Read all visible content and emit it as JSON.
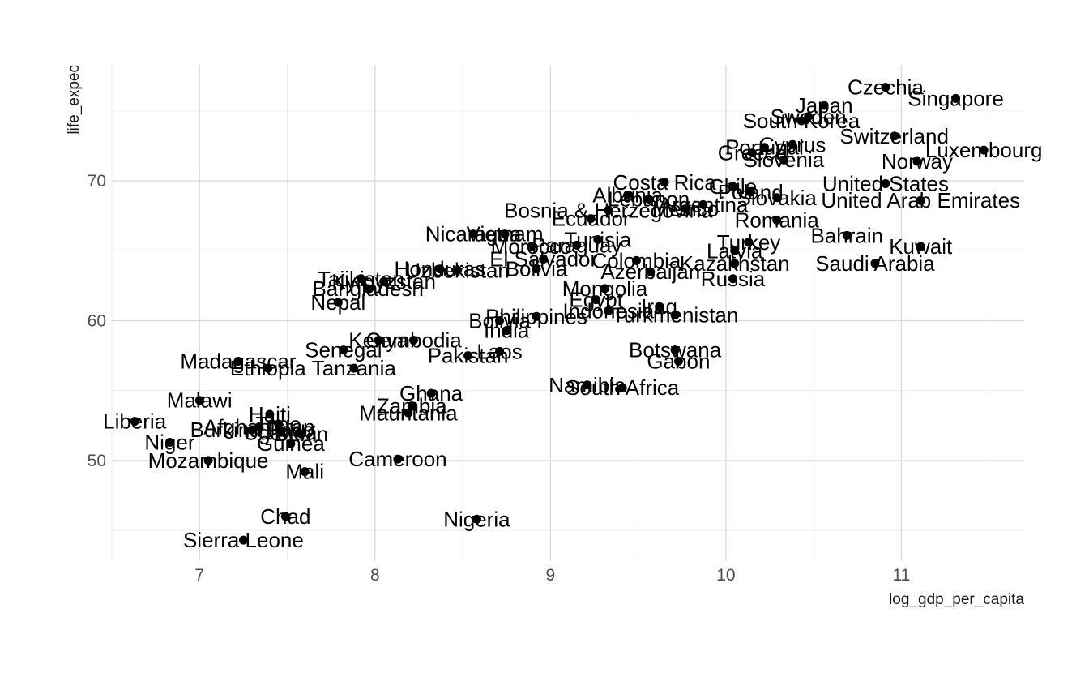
{
  "chart_data": {
    "type": "scatter",
    "xlabel": "log_gdp_per_capita",
    "ylabel": "life_expec",
    "xlim": [
      6.5,
      11.7
    ],
    "ylim": [
      42.8,
      78.3
    ],
    "x_ticks": [
      7,
      8,
      9,
      10,
      11
    ],
    "y_ticks": [
      50,
      60,
      70
    ],
    "grid": true,
    "points": [
      {
        "label": "Czechia",
        "x": 10.91,
        "y": 76.7
      },
      {
        "label": "Singapore",
        "x": 11.31,
        "y": 75.9
      },
      {
        "label": "Japan",
        "x": 10.56,
        "y": 75.4
      },
      {
        "label": "Sweden",
        "x": 10.47,
        "y": 74.6
      },
      {
        "label": "South Korea",
        "x": 10.43,
        "y": 74.3
      },
      {
        "label": "Switzerland",
        "x": 10.96,
        "y": 73.2
      },
      {
        "label": "Luxembourg",
        "x": 11.47,
        "y": 72.2
      },
      {
        "label": "Norway",
        "x": 11.09,
        "y": 71.4
      },
      {
        "label": "Greece",
        "x": 10.15,
        "y": 72.0
      },
      {
        "label": "Portugal",
        "x": 10.22,
        "y": 72.4
      },
      {
        "label": "Cyprus",
        "x": 10.38,
        "y": 72.6
      },
      {
        "label": "Slovenia",
        "x": 10.33,
        "y": 71.5
      },
      {
        "label": "United States",
        "x": 10.91,
        "y": 69.8
      },
      {
        "label": "United Arab Emirates",
        "x": 11.11,
        "y": 68.6
      },
      {
        "label": "Costa Rica",
        "x": 9.65,
        "y": 69.9
      },
      {
        "label": "Chile",
        "x": 10.04,
        "y": 69.6
      },
      {
        "label": "Poland",
        "x": 10.14,
        "y": 69.2
      },
      {
        "label": "Slovakia",
        "x": 10.29,
        "y": 68.8
      },
      {
        "label": "Albania",
        "x": 9.44,
        "y": 69.0
      },
      {
        "label": "Lebanon",
        "x": 9.56,
        "y": 68.7
      },
      {
        "label": "Bosnia & Herzegovina",
        "x": 9.33,
        "y": 67.9
      },
      {
        "label": "Mexico",
        "x": 9.77,
        "y": 68.0
      },
      {
        "label": "Argentina",
        "x": 9.87,
        "y": 68.3
      },
      {
        "label": "Ecuador",
        "x": 9.23,
        "y": 67.3
      },
      {
        "label": "Romania",
        "x": 10.29,
        "y": 67.2
      },
      {
        "label": "Nicaragua",
        "x": 8.56,
        "y": 66.2
      },
      {
        "label": "Vietnam",
        "x": 8.74,
        "y": 66.2
      },
      {
        "label": "Tunisia",
        "x": 9.27,
        "y": 65.8
      },
      {
        "label": "Turkey",
        "x": 10.13,
        "y": 65.6
      },
      {
        "label": "Bahrain",
        "x": 10.69,
        "y": 66.1
      },
      {
        "label": "Kuwait",
        "x": 11.11,
        "y": 65.3
      },
      {
        "label": "Morocco",
        "x": 8.89,
        "y": 65.3
      },
      {
        "label": "Paraguay",
        "x": 9.15,
        "y": 65.4
      },
      {
        "label": "Latvia",
        "x": 10.05,
        "y": 65.0
      },
      {
        "label": "El Salvador",
        "x": 8.96,
        "y": 64.4
      },
      {
        "label": "Colombia",
        "x": 9.49,
        "y": 64.3
      },
      {
        "label": "Kazakhstan",
        "x": 10.05,
        "y": 64.1
      },
      {
        "label": "Saudi Arabia",
        "x": 10.85,
        "y": 64.1
      },
      {
        "label": "Honduras",
        "x": 8.37,
        "y": 63.7
      },
      {
        "label": "Uzbekistan",
        "x": 8.47,
        "y": 63.6
      },
      {
        "label": "Bolivia",
        "x": 8.92,
        "y": 63.7
      },
      {
        "label": "Azerbaijan",
        "x": 9.57,
        "y": 63.5
      },
      {
        "label": "Russia",
        "x": 10.04,
        "y": 63.0
      },
      {
        "label": "Tajikistan",
        "x": 7.92,
        "y": 63.0
      },
      {
        "label": "Kyrgyzstan",
        "x": 8.05,
        "y": 62.8
      },
      {
        "label": "Bangladesh",
        "x": 7.96,
        "y": 62.3
      },
      {
        "label": "Mongolia",
        "x": 9.31,
        "y": 62.3
      },
      {
        "label": "Egypt",
        "x": 9.26,
        "y": 61.5
      },
      {
        "label": "Iraq",
        "x": 9.62,
        "y": 61.0
      },
      {
        "label": "Nepal",
        "x": 7.79,
        "y": 61.3
      },
      {
        "label": "Indonesia",
        "x": 9.33,
        "y": 60.7
      },
      {
        "label": "Turkmenistan",
        "x": 9.71,
        "y": 60.4
      },
      {
        "label": "Philippines",
        "x": 8.92,
        "y": 60.3
      },
      {
        "label": "Bolivia",
        "x": 8.71,
        "y": 60.0
      },
      {
        "label": "India",
        "x": 8.75,
        "y": 59.3
      },
      {
        "label": "Kenya",
        "x": 8.02,
        "y": 58.6
      },
      {
        "label": "Cambodia",
        "x": 8.22,
        "y": 58.6
      },
      {
        "label": "Senegal",
        "x": 7.82,
        "y": 57.9
      },
      {
        "label": "Botswana",
        "x": 9.71,
        "y": 57.9
      },
      {
        "label": "Gabon",
        "x": 9.73,
        "y": 57.1
      },
      {
        "label": "Pakistan",
        "x": 8.53,
        "y": 57.5
      },
      {
        "label": "Laos",
        "x": 8.71,
        "y": 57.8
      },
      {
        "label": "Madagascar",
        "x": 7.22,
        "y": 57.1
      },
      {
        "label": "Ethiopia",
        "x": 7.39,
        "y": 56.6
      },
      {
        "label": "Tanzania",
        "x": 7.88,
        "y": 56.6
      },
      {
        "label": "Namibia",
        "x": 9.21,
        "y": 55.4
      },
      {
        "label": "South Africa",
        "x": 9.41,
        "y": 55.2
      },
      {
        "label": "Ghana",
        "x": 8.32,
        "y": 54.8
      },
      {
        "label": "Malawi",
        "x": 7.0,
        "y": 54.3
      },
      {
        "label": "Zambia",
        "x": 8.21,
        "y": 53.9
      },
      {
        "label": "Mauritania",
        "x": 8.19,
        "y": 53.4
      },
      {
        "label": "Haiti",
        "x": 7.4,
        "y": 53.3
      },
      {
        "label": "Liberia",
        "x": 6.63,
        "y": 52.8
      },
      {
        "label": "Togo",
        "x": 7.45,
        "y": 52.6
      },
      {
        "label": "Burkina Faso",
        "x": 7.3,
        "y": 52.2
      },
      {
        "label": "Afghanistan",
        "x": 7.34,
        "y": 52.4
      },
      {
        "label": "Uganda",
        "x": 7.46,
        "y": 52.0
      },
      {
        "label": "Benin",
        "x": 7.58,
        "y": 51.9
      },
      {
        "label": "Guinea",
        "x": 7.52,
        "y": 51.2
      },
      {
        "label": "Niger",
        "x": 6.83,
        "y": 51.3
      },
      {
        "label": "Mozambique",
        "x": 7.05,
        "y": 50.0
      },
      {
        "label": "Cameroon",
        "x": 8.13,
        "y": 50.1
      },
      {
        "label": "Mali",
        "x": 7.6,
        "y": 49.2
      },
      {
        "label": "Chad",
        "x": 7.49,
        "y": 46.0
      },
      {
        "label": "Nigeria",
        "x": 8.58,
        "y": 45.8
      },
      {
        "label": "Sierra Leone",
        "x": 7.25,
        "y": 44.3
      }
    ]
  }
}
